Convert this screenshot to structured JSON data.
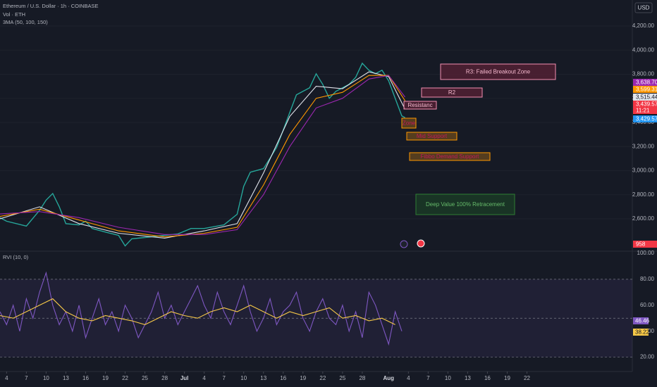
{
  "header": {
    "currency": "USD"
  },
  "chart_data": [
    {
      "type": "line",
      "title": "Ethereum / U.S. Dollar · 1h · COINBASE",
      "indicators": [
        "Vol · ETH",
        "3MA (50, 100, 150)"
      ],
      "xlim": [
        2,
        98
      ],
      "ylim": [
        2343,
        4416
      ],
      "yticks": [
        {
          "value": 4200,
          "label": "4,200.00"
        },
        {
          "value": 4000,
          "label": "4,000.00"
        },
        {
          "value": 3800,
          "label": "3,800.00"
        },
        {
          "value": 3600,
          "label": "3,600.00"
        },
        {
          "value": 3400,
          "label": "3,400.00"
        },
        {
          "value": 3200,
          "label": "3,200.00"
        },
        {
          "value": 3000,
          "label": "3,000.00"
        },
        {
          "value": 2800,
          "label": "2,800.00"
        },
        {
          "value": 2600,
          "label": "2,600.00"
        }
      ],
      "grid": true,
      "series": [
        {
          "color": "#26a69a",
          "x": [
            2,
            3,
            6,
            8,
            9,
            10,
            11,
            12,
            14,
            15,
            16,
            18,
            20,
            21,
            22,
            24,
            27,
            29,
            31,
            33,
            36,
            38,
            39,
            40,
            42,
            43,
            44,
            45,
            46,
            47,
            48,
            49,
            50,
            51,
            52,
            53,
            54,
            55,
            56,
            57,
            58,
            59,
            60,
            61,
            62,
            63,
            63.5
          ],
          "values": [
            2610,
            2580,
            2540,
            2670,
            2755,
            2810,
            2700,
            2560,
            2550,
            2580,
            2520,
            2490,
            2463,
            2375,
            2434,
            2445,
            2463,
            2475,
            2520,
            2520,
            2550,
            2638,
            2870,
            2987,
            3017,
            3104,
            3192,
            3337,
            3483,
            3629,
            3658,
            3687,
            3804,
            3716,
            3600,
            3658,
            3687,
            3716,
            3775,
            3891,
            3833,
            3804,
            3833,
            3746,
            3600,
            3454,
            3440
          ]
        },
        {
          "color": "#e0e3eb",
          "x": [
            2,
            8,
            14,
            20,
            27,
            33,
            38,
            42,
            46,
            50,
            54,
            58,
            61,
            63.5
          ],
          "values": [
            2600,
            2700,
            2560,
            2480,
            2440,
            2500,
            2560,
            2980,
            3450,
            3700,
            3680,
            3820,
            3780,
            3510
          ]
        },
        {
          "color": "#ff9800",
          "x": [
            2,
            8,
            14,
            20,
            27,
            33,
            38,
            42,
            46,
            50,
            54,
            58,
            61,
            63.5
          ],
          "values": [
            2620,
            2680,
            2590,
            2500,
            2450,
            2480,
            2530,
            2880,
            3300,
            3600,
            3650,
            3790,
            3790,
            3580
          ]
        },
        {
          "color": "#9c27b0",
          "x": [
            2,
            8,
            14,
            20,
            27,
            33,
            38,
            42,
            46,
            50,
            54,
            58,
            61,
            63.5
          ],
          "values": [
            2640,
            2660,
            2610,
            2530,
            2470,
            2470,
            2510,
            2800,
            3200,
            3520,
            3600,
            3760,
            3790,
            3610
          ]
        }
      ],
      "price_tags": [
        {
          "label": "3,638.70",
          "color": "#9c27b0",
          "text_color": "#ffffff"
        },
        {
          "label": "3,599.31",
          "color": "#ff9800",
          "text_color": "#ffffff"
        },
        {
          "label": "3,515.44",
          "color": "#e0e3eb",
          "text_color": "#131722"
        },
        {
          "label": "3,439.57",
          "color": "#f23645",
          "text_color": "#ffffff"
        },
        {
          "label": "11:21",
          "color": "#f23645",
          "text_color": "#ffffff"
        },
        {
          "label": "3,429.57",
          "color": "#2196f3",
          "text_color": "#ffffff"
        },
        {
          "label": "958",
          "color": "#f23645",
          "text_color": "#ffffff"
        }
      ],
      "annotations": [
        {
          "text": "R3: Failed Breakout Zone",
          "border": "#f48fb1",
          "fill": "#5a2236",
          "text_color": "#f8bbd0"
        },
        {
          "text": "R2",
          "border": "#f48fb1",
          "fill": "#5a2236",
          "text_color": "#f8bbd0"
        },
        {
          "text": "Resistanc",
          "border": "#f48fb1",
          "fill": "#5a2236",
          "text_color": "#f8bbd0"
        },
        {
          "text": "Zone",
          "border": "#ff9800",
          "fill": "#6b4a1c",
          "text_color": "#c2185b"
        },
        {
          "text": "Mid Support",
          "border": "#ff9800",
          "fill": "#6b4a1c",
          "text_color": "#c2185b"
        },
        {
          "text": "Fibbo Demand Support",
          "border": "#ff9800",
          "fill": "#6b4a1c",
          "text_color": "#c2185b"
        },
        {
          "text": "Deep Value 100% Retracement",
          "border": "#2e7d32",
          "fill": "#1b3d26",
          "text_color": "#66bb6a"
        }
      ]
    },
    {
      "type": "line",
      "title": "RVI (10, 0)",
      "xlim": [
        2,
        98
      ],
      "ylim": [
        10,
        100
      ],
      "yticks": [
        {
          "value": 100,
          "label": "100.00"
        },
        {
          "value": 80,
          "label": "80.00"
        },
        {
          "value": 60,
          "label": "60.00"
        },
        {
          "value": 40,
          "label": "40.00"
        },
        {
          "value": 20,
          "label": "20.00"
        }
      ],
      "levels": [
        80,
        50,
        20
      ],
      "xticks": [
        {
          "value": 3,
          "label": "4"
        },
        {
          "value": 6,
          "label": "7"
        },
        {
          "value": 9,
          "label": "10"
        },
        {
          "value": 12,
          "label": "13"
        },
        {
          "value": 15,
          "label": "16"
        },
        {
          "value": 18,
          "label": "19"
        },
        {
          "value": 21,
          "label": "22"
        },
        {
          "value": 24,
          "label": "25"
        },
        {
          "value": 27,
          "label": "28"
        },
        {
          "value": 30,
          "label": "Jul"
        },
        {
          "value": 33,
          "label": "4"
        },
        {
          "value": 36,
          "label": "7"
        },
        {
          "value": 39,
          "label": "10"
        },
        {
          "value": 42,
          "label": "13"
        },
        {
          "value": 45,
          "label": "16"
        },
        {
          "value": 48,
          "label": "19"
        },
        {
          "value": 51,
          "label": "22"
        },
        {
          "value": 54,
          "label": "25"
        },
        {
          "value": 57,
          "label": "28"
        },
        {
          "value": 61,
          "label": "Aug"
        },
        {
          "value": 64,
          "label": "4"
        },
        {
          "value": 67,
          "label": "7"
        },
        {
          "value": 70,
          "label": "10"
        },
        {
          "value": 73,
          "label": "13"
        },
        {
          "value": 76,
          "label": "16"
        },
        {
          "value": 79,
          "label": "19"
        },
        {
          "value": 82,
          "label": "22"
        }
      ],
      "series": [
        {
          "color": "#7e57c2",
          "x": [
            2,
            3,
            4,
            5,
            6,
            7,
            8,
            9,
            10,
            11,
            12,
            13,
            14,
            15,
            16,
            17,
            18,
            19,
            20,
            21,
            22,
            23,
            24,
            25,
            26,
            27,
            28,
            29,
            30,
            31,
            32,
            33,
            34,
            35,
            36,
            37,
            38,
            39,
            40,
            41,
            42,
            43,
            44,
            45,
            46,
            47,
            48,
            49,
            50,
            51,
            52,
            53,
            54,
            55,
            56,
            57,
            58,
            59,
            60,
            61,
            62,
            63
          ],
          "values": [
            55,
            45,
            60,
            40,
            65,
            50,
            70,
            85,
            60,
            45,
            55,
            40,
            60,
            35,
            50,
            65,
            45,
            55,
            40,
            60,
            50,
            35,
            45,
            55,
            70,
            50,
            60,
            45,
            55,
            65,
            75,
            60,
            50,
            70,
            55,
            45,
            60,
            75,
            55,
            40,
            50,
            65,
            45,
            55,
            60,
            70,
            50,
            40,
            55,
            65,
            50,
            45,
            60,
            40,
            55,
            35,
            70,
            60,
            45,
            30,
            55,
            40
          ]
        },
        {
          "color": "#f7c948",
          "x": [
            2,
            4,
            6,
            8,
            10,
            12,
            14,
            16,
            18,
            20,
            22,
            24,
            26,
            28,
            30,
            32,
            34,
            36,
            38,
            40,
            42,
            44,
            46,
            48,
            50,
            52,
            54,
            56,
            58,
            60,
            62
          ],
          "values": [
            52,
            50,
            55,
            60,
            65,
            55,
            50,
            48,
            52,
            50,
            48,
            45,
            50,
            55,
            52,
            50,
            55,
            58,
            55,
            60,
            55,
            50,
            55,
            52,
            55,
            58,
            50,
            52,
            48,
            50,
            45
          ]
        }
      ],
      "value_tags": [
        {
          "label": "46.46",
          "color": "#7e57c2",
          "text_color": "#ffffff"
        },
        {
          "label": "38.22",
          "color": "#f7c948",
          "text_color": "#131722"
        }
      ]
    }
  ]
}
